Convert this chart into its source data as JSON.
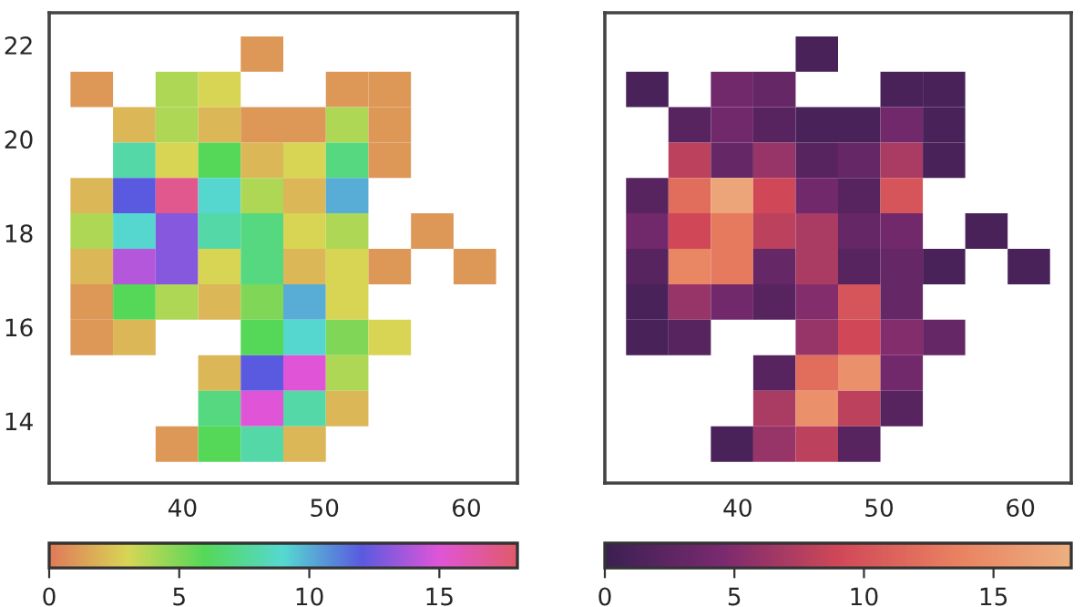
{
  "chart_data": [
    {
      "type": "heatmap",
      "x": [
        33.6,
        36.6,
        39.6,
        42.6,
        45.6,
        48.6,
        51.6,
        54.6,
        57.6,
        60.6
      ],
      "y": [
        21.81,
        21.06,
        20.3,
        19.55,
        18.8,
        18.04,
        17.29,
        16.53,
        15.78,
        15.02,
        14.27,
        13.51
      ],
      "cells": [
        [
          null,
          null,
          null,
          null,
          1,
          null,
          null,
          null,
          null,
          null
        ],
        [
          1,
          null,
          4,
          3,
          null,
          null,
          1,
          1,
          null,
          null
        ],
        [
          null,
          2,
          4,
          2,
          1,
          1,
          4,
          1,
          null,
          null
        ],
        [
          null,
          8,
          3,
          6,
          2,
          3,
          7,
          1,
          null,
          null
        ],
        [
          2,
          12,
          17,
          9,
          4,
          2,
          10,
          null,
          null,
          null
        ],
        [
          4,
          9,
          13,
          8,
          7,
          3,
          4,
          null,
          1,
          null
        ],
        [
          2,
          14,
          13,
          3,
          7,
          2,
          3,
          1,
          null,
          1
        ],
        [
          1,
          6,
          4,
          2,
          5,
          10,
          3,
          null,
          null,
          null
        ],
        [
          1,
          2,
          null,
          null,
          6,
          9,
          5,
          3,
          null,
          null
        ],
        [
          null,
          null,
          null,
          2,
          12,
          15,
          4,
          null,
          null,
          null
        ],
        [
          null,
          null,
          null,
          7,
          15,
          8,
          2,
          null,
          null,
          null
        ],
        [
          null,
          null,
          1,
          6,
          8,
          2,
          null,
          null,
          null,
          null
        ]
      ],
      "colors": [
        "#e07a5a",
        "#d8d655",
        "#55d858",
        "#55d8d0",
        "#5a5ae0",
        "#e055d8",
        "#e05a6a"
      ],
      "xlim": [
        30.6,
        63.6
      ],
      "xticks": [
        40,
        50,
        60
      ],
      "ylim": [
        12.68,
        22.69
      ],
      "yticks": [
        14,
        16,
        18,
        20,
        22
      ],
      "clim": [
        0,
        18
      ],
      "cticks": [
        0,
        5,
        10,
        15
      ]
    },
    {
      "type": "heatmap",
      "x": [
        33.6,
        36.6,
        39.6,
        42.6,
        45.6,
        48.6,
        51.6,
        54.6,
        57.6,
        60.6
      ],
      "y": [
        21.81,
        21.06,
        20.3,
        19.55,
        18.8,
        18.04,
        17.29,
        16.53,
        15.78,
        15.02,
        14.27,
        13.51
      ],
      "cells": [
        [
          null,
          null,
          null,
          null,
          1,
          null,
          null,
          null,
          null,
          null
        ],
        [
          1,
          null,
          4,
          3,
          null,
          null,
          1,
          1,
          null,
          null
        ],
        [
          null,
          2,
          4,
          2,
          1,
          1,
          4,
          1,
          null,
          null
        ],
        [
          null,
          8,
          3,
          6,
          2,
          3,
          7,
          1,
          null,
          null
        ],
        [
          2,
          12,
          17,
          9,
          4,
          2,
          10,
          null,
          null,
          null
        ],
        [
          4,
          9,
          13,
          8,
          7,
          3,
          4,
          null,
          1,
          null
        ],
        [
          2,
          14,
          13,
          3,
          7,
          2,
          3,
          1,
          null,
          1
        ],
        [
          1,
          6,
          4,
          2,
          5,
          10,
          3,
          null,
          null,
          null
        ],
        [
          1,
          2,
          null,
          null,
          6,
          9,
          5,
          3,
          null,
          null
        ],
        [
          null,
          null,
          null,
          2,
          12,
          15,
          4,
          null,
          null,
          null
        ],
        [
          null,
          null,
          null,
          7,
          15,
          8,
          2,
          null,
          null,
          null
        ],
        [
          null,
          null,
          1,
          6,
          8,
          2,
          null,
          null,
          null,
          null
        ]
      ],
      "colors": [
        "#3b2052",
        "#7a2a70",
        "#d04858",
        "#e98060",
        "#edb07f"
      ],
      "xlim": [
        30.6,
        63.6
      ],
      "xticks": [
        40,
        50,
        60
      ],
      "ylim": [
        12.68,
        22.69
      ],
      "yticks": [
        14,
        16,
        18,
        20,
        22
      ],
      "tick_labels": "x",
      "clim": [
        0,
        18
      ],
      "cticks": [
        0,
        5,
        10,
        15
      ]
    }
  ]
}
